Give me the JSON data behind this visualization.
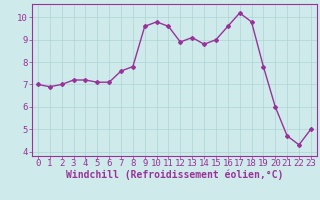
{
  "x": [
    0,
    1,
    2,
    3,
    4,
    5,
    6,
    7,
    8,
    9,
    10,
    11,
    12,
    13,
    14,
    15,
    16,
    17,
    18,
    19,
    20,
    21,
    22,
    23
  ],
  "y": [
    7.0,
    6.9,
    7.0,
    7.2,
    7.2,
    7.1,
    7.1,
    7.6,
    7.8,
    9.6,
    9.8,
    9.6,
    8.9,
    9.1,
    8.8,
    9.0,
    9.6,
    10.2,
    9.8,
    7.8,
    6.0,
    4.7,
    4.3,
    5.0
  ],
  "line_color": "#993399",
  "marker": "D",
  "marker_size": 2,
  "line_width": 1.0,
  "bg_color": "#ceeaea",
  "grid_color": "#aed4d4",
  "xlabel": "Windchill (Refroidissement éolien,°C)",
  "xlabel_color": "#993399",
  "tick_color": "#993399",
  "ylim": [
    3.8,
    10.6
  ],
  "xlim": [
    -0.5,
    23.5
  ],
  "yticks": [
    4,
    5,
    6,
    7,
    8,
    9,
    10
  ],
  "xticks": [
    0,
    1,
    2,
    3,
    4,
    5,
    6,
    7,
    8,
    9,
    10,
    11,
    12,
    13,
    14,
    15,
    16,
    17,
    18,
    19,
    20,
    21,
    22,
    23
  ],
  "font_size": 6.5,
  "xlabel_fontsize": 7.0
}
